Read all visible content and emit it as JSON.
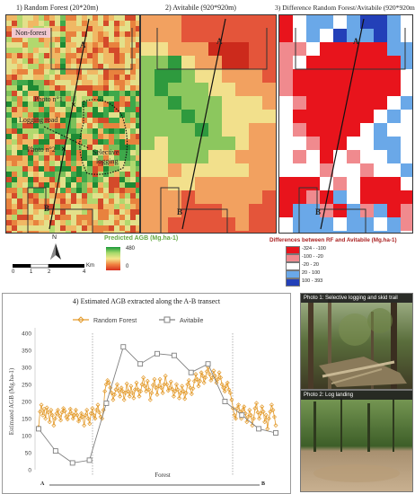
{
  "panels": {
    "p1_title": "1) Random Forest (20*20m)",
    "p2_title": "2) Avitabile (920*920m)",
    "p3_title": "3) Difference Random Forest/Avitabile (920*920m)"
  },
  "map_labels": {
    "non_forest": "Non-forest",
    "photo1": "Photo n°1",
    "photo2": "Photo n°2",
    "logging_road": "Logging road",
    "selective_logging_1": "Selective",
    "selective_logging_2": "logging",
    "point_a": "A",
    "point_b": "B"
  },
  "scale": {
    "north": "N",
    "ticks": [
      "0",
      "1",
      "2",
      "4"
    ],
    "unit": "Km"
  },
  "agb_legend": {
    "title": "Predicted AGB (Mg.ha-1)",
    "max": "480",
    "min": "0"
  },
  "diff_legend": {
    "title": "Differences between RF and Avitabile (Mg.ha-1)",
    "items": [
      {
        "label": "-324 - -100",
        "color": "#e8141c"
      },
      {
        "label": "-100 - -20",
        "color": "#f08a8e"
      },
      {
        "label": "-20 - 20",
        "color": "#ffffff"
      },
      {
        "label": "20 - 100",
        "color": "#6aa8e8"
      },
      {
        "label": "100 - 393",
        "color": "#2340b8"
      }
    ]
  },
  "chart_data": {
    "type": "line",
    "title": "4) Estimated AGB extracted along the A-B transect",
    "ylabel": "Estimated AGB (Mg.ha-1)",
    "ylim": [
      0,
      400
    ],
    "yticks": [
      0,
      50,
      100,
      150,
      200,
      250,
      300,
      350,
      400
    ],
    "x_start_label": "A",
    "x_end_label": "B",
    "region_label": "Forest",
    "series": [
      {
        "name": "Random Forest",
        "color": "#e39a2a",
        "values": [
          125,
          170,
          190,
          160,
          178,
          150,
          182,
          168,
          140,
          175,
          160,
          130,
          150,
          165,
          175,
          158,
          145,
          168,
          180,
          172,
          155,
          148,
          162,
          178,
          165,
          150,
          160,
          175,
          160,
          142,
          150,
          165,
          155,
          130,
          160,
          175,
          150,
          135,
          165,
          180,
          160,
          150,
          175,
          190,
          168,
          155,
          150,
          175,
          230,
          250,
          262,
          255,
          240,
          225,
          205,
          220,
          235,
          250,
          232,
          215,
          240,
          230,
          205,
          225,
          252,
          230,
          215,
          245,
          225,
          210,
          235,
          255,
          235,
          215,
          230,
          250,
          270,
          245,
          230,
          260,
          235,
          205,
          225,
          248,
          265,
          240,
          220,
          245,
          265,
          240,
          225,
          250,
          275,
          250,
          232,
          240,
          258,
          236,
          215,
          230,
          250,
          235,
          210,
          225,
          245,
          230,
          208,
          225,
          250,
          262,
          240,
          222,
          238,
          260,
          280,
          265,
          245,
          260,
          285,
          275,
          255,
          270,
          288,
          300,
          280,
          262,
          270,
          290,
          275,
          255,
          265,
          285,
          270,
          250,
          240,
          230,
          245,
          255,
          235,
          225,
          205,
          180,
          160,
          150,
          180,
          190,
          170,
          150,
          175,
          185,
          165,
          140,
          155,
          175,
          160,
          130,
          150,
          180,
          195,
          168,
          150,
          165,
          185,
          170,
          140,
          160,
          120,
          150,
          170,
          190,
          175,
          155,
          130
        ]
      },
      {
        "name": "Avitabile",
        "color": "#808080",
        "values": [
          120,
          55,
          20,
          28,
          195,
          360,
          310,
          340,
          335,
          285,
          310,
          200,
          160,
          120,
          108
        ]
      }
    ]
  },
  "photos": {
    "photo1_caption": "Photo 1: Selective logging and skid trail",
    "photo2_caption": "Photo 2: Log landing"
  }
}
